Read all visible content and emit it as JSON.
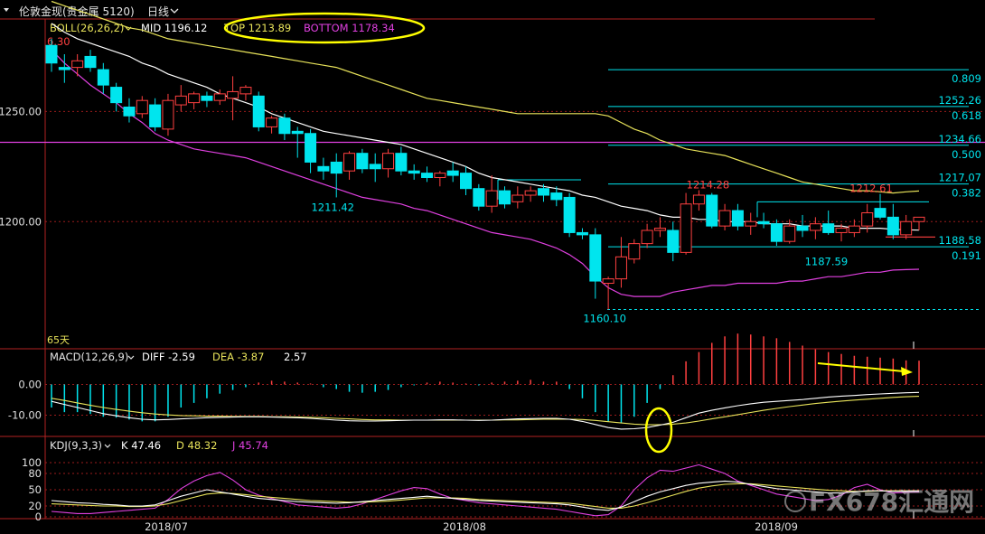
{
  "header": {
    "title": "伦敦金现(贵金属 5120)",
    "period": "日线"
  },
  "boll": {
    "label": "BOLL(26,26,2)",
    "mid_label": "MID 1196.12",
    "top_label": "TOP 1213.89",
    "bottom_label": "BOTTOM 1178.34",
    "corner_value": "6.30"
  },
  "macd": {
    "label": "MACD(12,26,9)",
    "diff_label": "DIFF -2.59",
    "dea_label": "DEA -3.87",
    "macd_value": "2.57"
  },
  "kdj": {
    "label": "KDJ(9,3,3)",
    "k_label": "K 47.46",
    "d_label": "D 48.32",
    "j_label": "J 45.74"
  },
  "misc": {
    "days_label": "65天",
    "watermark": "FX678汇通网"
  },
  "colors": {
    "up": "#ff4040",
    "down": "#00e5ee",
    "mid": "#ffffff",
    "top": "#e8e35a",
    "bottom": "#e040e0",
    "fib": "#00e5ee",
    "annot": "#ffff00",
    "grid": "#9b1c1c",
    "axis_text": "#e0e0e0"
  },
  "chart_data": [
    {
      "type": "candlestick",
      "title": "伦敦金现 日线",
      "x": [
        "2018/07",
        "2018/08",
        "2018/09"
      ],
      "ylim": [
        1148,
        1292
      ],
      "y_ticks": [
        1200.0,
        1250.0
      ],
      "candles": [
        {
          "o": 1280,
          "h": 1283,
          "l": 1268,
          "c": 1272
        },
        {
          "o": 1270,
          "h": 1276,
          "l": 1263,
          "c": 1269
        },
        {
          "o": 1270,
          "h": 1276,
          "l": 1266,
          "c": 1273
        },
        {
          "o": 1275,
          "h": 1278,
          "l": 1268,
          "c": 1270
        },
        {
          "o": 1269,
          "h": 1272,
          "l": 1258,
          "c": 1262
        },
        {
          "o": 1261,
          "h": 1263,
          "l": 1250,
          "c": 1254
        },
        {
          "o": 1252,
          "h": 1256,
          "l": 1245,
          "c": 1248
        },
        {
          "o": 1249,
          "h": 1257,
          "l": 1247,
          "c": 1255
        },
        {
          "o": 1253,
          "h": 1256,
          "l": 1241,
          "c": 1243
        },
        {
          "o": 1242,
          "h": 1258,
          "l": 1239,
          "c": 1255
        },
        {
          "o": 1253,
          "h": 1262,
          "l": 1250,
          "c": 1257
        },
        {
          "o": 1254,
          "h": 1259,
          "l": 1251,
          "c": 1258
        },
        {
          "o": 1257,
          "h": 1259,
          "l": 1252,
          "c": 1255
        },
        {
          "o": 1255,
          "h": 1260,
          "l": 1253,
          "c": 1258
        },
        {
          "o": 1256,
          "h": 1266,
          "l": 1246,
          "c": 1259
        },
        {
          "o": 1258,
          "h": 1262,
          "l": 1255,
          "c": 1261
        },
        {
          "o": 1257,
          "h": 1259,
          "l": 1241,
          "c": 1243
        },
        {
          "o": 1243,
          "h": 1248,
          "l": 1240,
          "c": 1247
        },
        {
          "o": 1247,
          "h": 1249,
          "l": 1237,
          "c": 1240
        },
        {
          "o": 1241,
          "h": 1243,
          "l": 1229,
          "c": 1240
        },
        {
          "o": 1240,
          "h": 1242,
          "l": 1222,
          "c": 1227
        },
        {
          "o": 1225,
          "h": 1229,
          "l": 1219,
          "c": 1223
        },
        {
          "o": 1227,
          "h": 1231,
          "l": 1211,
          "c": 1222
        },
        {
          "o": 1223,
          "h": 1232,
          "l": 1219,
          "c": 1231
        },
        {
          "o": 1231,
          "h": 1233,
          "l": 1222,
          "c": 1224
        },
        {
          "o": 1226,
          "h": 1231,
          "l": 1218,
          "c": 1224
        },
        {
          "o": 1224,
          "h": 1233,
          "l": 1220,
          "c": 1231
        },
        {
          "o": 1231,
          "h": 1234,
          "l": 1221,
          "c": 1223
        },
        {
          "o": 1223,
          "h": 1226,
          "l": 1219,
          "c": 1222
        },
        {
          "o": 1222,
          "h": 1225,
          "l": 1218,
          "c": 1220
        },
        {
          "o": 1220,
          "h": 1223,
          "l": 1216,
          "c": 1222
        },
        {
          "o": 1223,
          "h": 1227,
          "l": 1218,
          "c": 1221
        },
        {
          "o": 1222,
          "h": 1225,
          "l": 1212,
          "c": 1215
        },
        {
          "o": 1215,
          "h": 1217,
          "l": 1205,
          "c": 1207
        },
        {
          "o": 1207,
          "h": 1221,
          "l": 1204,
          "c": 1214
        },
        {
          "o": 1214,
          "h": 1216,
          "l": 1206,
          "c": 1208
        },
        {
          "o": 1209,
          "h": 1216,
          "l": 1206,
          "c": 1212
        },
        {
          "o": 1212,
          "h": 1216,
          "l": 1209,
          "c": 1214
        },
        {
          "o": 1215,
          "h": 1217,
          "l": 1209,
          "c": 1212
        },
        {
          "o": 1213,
          "h": 1216,
          "l": 1207,
          "c": 1210
        },
        {
          "o": 1211,
          "h": 1213,
          "l": 1193,
          "c": 1195
        },
        {
          "o": 1195,
          "h": 1197,
          "l": 1192,
          "c": 1194
        },
        {
          "o": 1194,
          "h": 1197,
          "l": 1165,
          "c": 1173
        },
        {
          "o": 1172,
          "h": 1175,
          "l": 1160.1,
          "c": 1174
        },
        {
          "o": 1174,
          "h": 1193,
          "l": 1170,
          "c": 1184
        },
        {
          "o": 1183,
          "h": 1192,
          "l": 1181,
          "c": 1190
        },
        {
          "o": 1190,
          "h": 1199,
          "l": 1188,
          "c": 1196
        },
        {
          "o": 1196,
          "h": 1202,
          "l": 1193,
          "c": 1197
        },
        {
          "o": 1196,
          "h": 1200,
          "l": 1182,
          "c": 1186
        },
        {
          "o": 1186,
          "h": 1213,
          "l": 1185,
          "c": 1208
        },
        {
          "o": 1208,
          "h": 1214.28,
          "l": 1205,
          "c": 1212
        },
        {
          "o": 1212,
          "h": 1213,
          "l": 1197,
          "c": 1198
        },
        {
          "o": 1198,
          "h": 1208,
          "l": 1196,
          "c": 1205
        },
        {
          "o": 1205,
          "h": 1208,
          "l": 1196,
          "c": 1198
        },
        {
          "o": 1198,
          "h": 1204,
          "l": 1194,
          "c": 1200
        },
        {
          "o": 1200,
          "h": 1204,
          "l": 1197,
          "c": 1199
        },
        {
          "o": 1199,
          "h": 1201,
          "l": 1189,
          "c": 1191
        },
        {
          "o": 1191,
          "h": 1201,
          "l": 1190,
          "c": 1198
        },
        {
          "o": 1198,
          "h": 1203,
          "l": 1193,
          "c": 1196
        },
        {
          "o": 1196,
          "h": 1202,
          "l": 1192,
          "c": 1199
        },
        {
          "o": 1199,
          "h": 1205,
          "l": 1194,
          "c": 1195
        },
        {
          "o": 1195,
          "h": 1199,
          "l": 1191,
          "c": 1197
        },
        {
          "o": 1195,
          "h": 1201,
          "l": 1193,
          "c": 1198
        },
        {
          "o": 1198,
          "h": 1208,
          "l": 1195,
          "c": 1204
        },
        {
          "o": 1206,
          "h": 1212.61,
          "l": 1201,
          "c": 1202
        },
        {
          "o": 1202,
          "h": 1208,
          "l": 1192,
          "c": 1194
        },
        {
          "o": 1194,
          "h": 1203,
          "l": 1192,
          "c": 1200
        },
        {
          "o": 1200,
          "h": 1202,
          "l": 1196,
          "c": 1202
        }
      ],
      "mid": [
        1290,
        1286,
        1283,
        1281,
        1279,
        1277,
        1275,
        1272,
        1270,
        1267,
        1265,
        1263,
        1261,
        1258,
        1256,
        1254,
        1252,
        1249,
        1247,
        1245,
        1243,
        1241,
        1240,
        1239,
        1238,
        1237,
        1236,
        1235,
        1233,
        1231,
        1229,
        1227,
        1225,
        1222,
        1220,
        1219,
        1218,
        1217,
        1216,
        1215,
        1214,
        1212,
        1211,
        1209,
        1207,
        1206,
        1205,
        1203,
        1202,
        1202,
        1201,
        1201,
        1200,
        1200,
        1200,
        1199,
        1199,
        1199,
        1198,
        1198,
        1198,
        1198,
        1197,
        1197,
        1197,
        1196.5,
        1196.3,
        1196.12
      ],
      "top": [
        1300,
        1298,
        1296,
        1294,
        1292,
        1290,
        1288,
        1287,
        1285,
        1283,
        1282,
        1281,
        1280,
        1279,
        1278,
        1277,
        1276,
        1275,
        1274,
        1273,
        1272,
        1271,
        1270,
        1268,
        1266,
        1264,
        1262,
        1260,
        1258,
        1256,
        1255,
        1254,
        1253,
        1252,
        1251,
        1250,
        1249,
        1249,
        1249,
        1249,
        1249,
        1249,
        1249,
        1248,
        1245,
        1242,
        1240,
        1237,
        1235,
        1233,
        1232,
        1231,
        1230,
        1228,
        1226,
        1224,
        1222,
        1220,
        1218,
        1217,
        1216,
        1215,
        1214,
        1214,
        1213.5,
        1213,
        1213.5,
        1213.89
      ],
      "bottom": [
        1278,
        1272,
        1267,
        1262,
        1258,
        1254,
        1249,
        1245,
        1240,
        1237,
        1235,
        1233,
        1232,
        1231,
        1230,
        1229,
        1227,
        1225,
        1223,
        1221,
        1219,
        1217,
        1215,
        1213,
        1211,
        1210,
        1209,
        1208,
        1206,
        1205,
        1203,
        1201,
        1199,
        1197,
        1195,
        1194,
        1193,
        1192,
        1190,
        1188,
        1185,
        1181,
        1175,
        1170,
        1167,
        1166,
        1166,
        1166,
        1168,
        1169,
        1170,
        1171,
        1171,
        1172,
        1172,
        1172,
        1172,
        1173,
        1173,
        1174,
        1175,
        1175,
        1176,
        1177,
        1177,
        1178,
        1178.2,
        1178.34
      ],
      "fib_levels": [
        {
          "ratio": "0.809",
          "price": 1269
        },
        {
          "ratio": "0.618",
          "price": 1252.26
        },
        {
          "ratio": "0.500",
          "price": 1234.66
        },
        {
          "ratio": "0.382",
          "price": 1217.07
        },
        {
          "ratio": "0.191",
          "price": 1188.58
        }
      ],
      "price_labels": [
        {
          "text": "1211.42",
          "price": 1211.42
        },
        {
          "text": "1160.10",
          "price": 1160.1
        },
        {
          "text": "1214.28",
          "price": 1214.28
        },
        {
          "text": "1212.61",
          "price": 1212.61
        },
        {
          "text": "1187.59",
          "price": 1187.59
        },
        {
          "text": "1252.26",
          "price": 1252.26
        },
        {
          "text": "1234.66",
          "price": 1234.66
        },
        {
          "text": "1217.07",
          "price": 1217.07
        },
        {
          "text": "1188.58",
          "price": 1188.58
        }
      ]
    },
    {
      "type": "line",
      "title": "MACD(12,26,9)",
      "ylim": [
        -16,
        6
      ],
      "y_ticks": [
        "0.00",
        "-10.00"
      ],
      "diff": [
        -5.5,
        -6.5,
        -7.5,
        -8.5,
        -9.5,
        -10.2,
        -10.8,
        -11.3,
        -11.5,
        -11.4,
        -11.2,
        -11.0,
        -10.8,
        -10.7,
        -10.6,
        -10.5,
        -10.5,
        -10.6,
        -10.7,
        -10.8,
        -11.0,
        -11.3,
        -11.6,
        -11.8,
        -11.9,
        -11.9,
        -11.8,
        -11.7,
        -11.6,
        -11.6,
        -11.5,
        -11.5,
        -11.6,
        -11.7,
        -11.6,
        -11.4,
        -11.2,
        -11.1,
        -11.0,
        -11.0,
        -11.3,
        -12.0,
        -13.0,
        -14.0,
        -14.5,
        -14.4,
        -14.0,
        -13.2,
        -12.3,
        -10.8,
        -9.3,
        -8.4,
        -7.6,
        -6.9,
        -6.3,
        -5.8,
        -5.5,
        -5.2,
        -4.9,
        -4.5,
        -4.1,
        -3.8,
        -3.6,
        -3.3,
        -3.1,
        -2.9,
        -2.7,
        -2.59
      ],
      "dea": [
        -4.5,
        -5.2,
        -6.0,
        -6.8,
        -7.5,
        -8.1,
        -8.7,
        -9.2,
        -9.6,
        -9.9,
        -10.1,
        -10.2,
        -10.3,
        -10.3,
        -10.4,
        -10.4,
        -10.4,
        -10.5,
        -10.5,
        -10.6,
        -10.7,
        -10.8,
        -11.0,
        -11.2,
        -11.4,
        -11.5,
        -11.5,
        -11.6,
        -11.6,
        -11.6,
        -11.6,
        -11.6,
        -11.6,
        -11.6,
        -11.6,
        -11.5,
        -11.5,
        -11.4,
        -11.3,
        -11.3,
        -11.3,
        -11.4,
        -11.7,
        -12.1,
        -12.5,
        -12.9,
        -13.1,
        -13.1,
        -12.9,
        -12.5,
        -11.9,
        -11.2,
        -10.5,
        -9.8,
        -9.1,
        -8.4,
        -7.8,
        -7.2,
        -6.7,
        -6.2,
        -5.8,
        -5.4,
        -5.1,
        -4.8,
        -4.5,
        -4.2,
        -4.0,
        -3.87
      ],
      "hist": [
        -2.5,
        -3.0,
        -3.0,
        -3.2,
        -3.5,
        -3.6,
        -3.8,
        -4.0,
        -4.0,
        -3.5,
        -2.5,
        -2.0,
        -1.5,
        -1.0,
        -0.6,
        -0.3,
        0.2,
        0.4,
        0.3,
        0.2,
        0.1,
        -0.3,
        -0.5,
        -0.8,
        -0.9,
        -0.8,
        -0.6,
        -0.3,
        -0.1,
        0.2,
        0.3,
        0.2,
        0.1,
        -0.1,
        0.2,
        0.3,
        0.4,
        0.5,
        0.3,
        0.3,
        -0.5,
        -1.5,
        -3.0,
        -4.0,
        -4.2,
        -3.5,
        -2.0,
        -0.5,
        1.0,
        2.5,
        3.5,
        4.5,
        5.2,
        5.5,
        5.4,
        5.2,
        5.0,
        4.6,
        4.2,
        3.8,
        3.5,
        3.3,
        3.1,
        3.0,
        2.9,
        2.8,
        2.6,
        2.57
      ]
    },
    {
      "type": "line",
      "title": "KDJ(9,3,3)",
      "ylim": [
        0,
        120
      ],
      "y_ticks": [
        "100",
        "80",
        "50",
        "20",
        "0"
      ],
      "k": [
        30,
        28,
        26,
        25,
        23,
        22,
        20,
        20,
        22,
        30,
        38,
        44,
        50,
        46,
        42,
        38,
        34,
        32,
        30,
        28,
        27,
        26,
        25,
        26,
        28,
        30,
        32,
        34,
        36,
        38,
        36,
        34,
        32,
        30,
        29,
        28,
        27,
        26,
        25,
        24,
        22,
        18,
        14,
        12,
        18,
        28,
        38,
        46,
        52,
        58,
        62,
        64,
        66,
        64,
        60,
        56,
        52,
        50,
        48,
        46,
        44,
        44,
        46,
        48,
        48,
        47,
        47,
        47.46
      ],
      "d": [
        24,
        23,
        22,
        21,
        20,
        20,
        19,
        19,
        20,
        24,
        30,
        36,
        42,
        44,
        43,
        41,
        38,
        36,
        34,
        32,
        30,
        29,
        28,
        27,
        27,
        28,
        29,
        31,
        33,
        35,
        35,
        35,
        34,
        32,
        31,
        30,
        29,
        28,
        27,
        26,
        25,
        22,
        19,
        16,
        16,
        20,
        26,
        33,
        40,
        47,
        53,
        57,
        60,
        61,
        61,
        59,
        57,
        55,
        53,
        51,
        49,
        48,
        47,
        47,
        48,
        48,
        48,
        48.32
      ],
      "j": [
        10,
        8,
        6,
        6,
        8,
        10,
        12,
        14,
        16,
        32,
        52,
        66,
        76,
        82,
        68,
        50,
        40,
        34,
        28,
        22,
        20,
        18,
        16,
        18,
        24,
        32,
        40,
        48,
        54,
        52,
        42,
        34,
        30,
        26,
        24,
        22,
        20,
        18,
        16,
        14,
        10,
        6,
        2,
        4,
        20,
        50,
        72,
        86,
        84,
        90,
        96,
        88,
        80,
        66,
        58,
        50,
        42,
        38,
        34,
        30,
        32,
        40,
        54,
        60,
        50,
        44,
        45,
        45.74
      ]
    }
  ]
}
